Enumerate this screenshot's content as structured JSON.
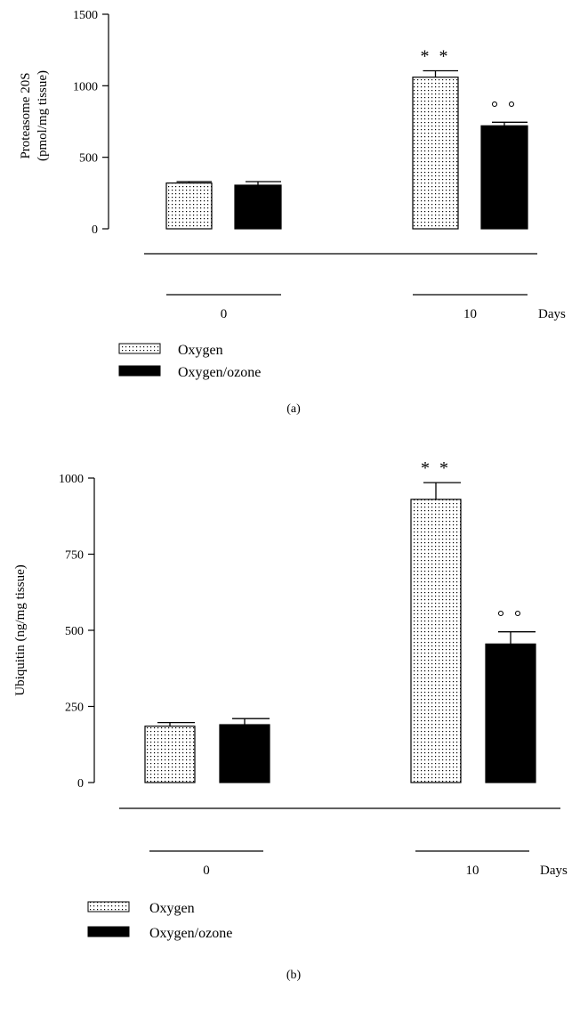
{
  "chart_data": [
    {
      "type": "bar",
      "panel_label": "(a)",
      "ylabel_line1": "Proteasome 20S",
      "ylabel_line2": "(pmol/mg tissue)",
      "ylim": [
        0,
        1500
      ],
      "yticks": [
        0,
        500,
        1000,
        1500
      ],
      "ytick_labels": [
        "0",
        "500",
        "1000",
        "1500"
      ],
      "groups": [
        "0",
        "10"
      ],
      "x_unit": "Days",
      "series": [
        {
          "name": "Oxygen",
          "pattern": "dotted",
          "values": [
            320,
            1060
          ],
          "errors": [
            10,
            45
          ],
          "markers": [
            "",
            "* *"
          ]
        },
        {
          "name": "Oxygen/ozone",
          "pattern": "solid",
          "values": [
            305,
            720
          ],
          "errors": [
            25,
            25
          ],
          "markers": [
            "",
            "° °"
          ]
        }
      ]
    },
    {
      "type": "bar",
      "panel_label": "(b)",
      "ylabel_line1": "Ubiquitin (ng/mg tissue)",
      "ylim": [
        0,
        1000
      ],
      "yticks": [
        0,
        250,
        500,
        750,
        1000
      ],
      "ytick_labels": [
        "0",
        "250",
        "500",
        "750",
        "1000"
      ],
      "groups": [
        "0",
        "10"
      ],
      "x_unit": "Days",
      "series": [
        {
          "name": "Oxygen",
          "pattern": "dotted",
          "values": [
            185,
            930
          ],
          "errors": [
            12,
            55
          ],
          "markers": [
            "",
            "* *"
          ]
        },
        {
          "name": "Oxygen/ozone",
          "pattern": "solid",
          "values": [
            190,
            455
          ],
          "errors": [
            20,
            40
          ],
          "markers": [
            "",
            "° °"
          ]
        }
      ]
    }
  ]
}
